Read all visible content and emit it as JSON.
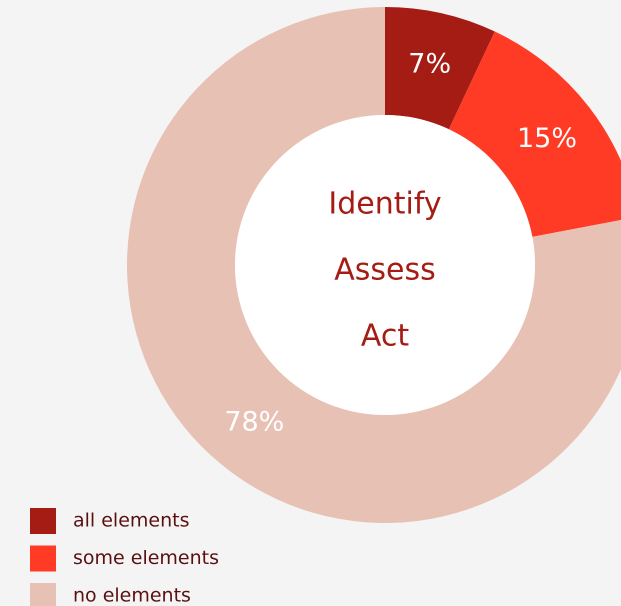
{
  "chart_data": {
    "type": "donut",
    "categories": [
      "all elements",
      "some elements",
      "no elements"
    ],
    "values": [
      7,
      15,
      78
    ],
    "value_labels": [
      "7%",
      "15%",
      "78%"
    ],
    "colors": [
      "#a51c14",
      "#ff3b25",
      "#e8c1b5"
    ],
    "center_text": [
      "Identify",
      "Assess",
      "Act"
    ],
    "legend": "bottom-left"
  }
}
